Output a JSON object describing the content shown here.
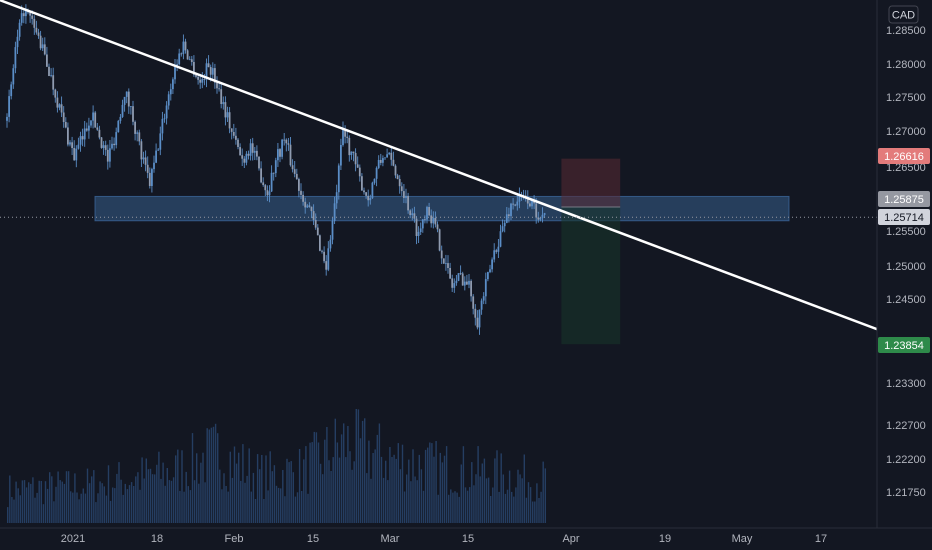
{
  "currency_label": "CAD",
  "colors": {
    "background": "#131722",
    "candle": "#5b8ec7",
    "volume": "#2c4c78",
    "trendline": "#ffffff",
    "zone": "#3e6ea5",
    "stop_zone": "#5a2a33",
    "target_zone": "#17342a",
    "stop_badge": "#e37b7b",
    "target_badge": "#2e8a4a",
    "entry_badge": "#9598a1",
    "last_badge": "#d1d4dc"
  },
  "chart_data": {
    "type": "candlestick",
    "instrument_quote": "CAD",
    "x_tick_labels": [
      "2021",
      "18",
      "Feb",
      "15",
      "Mar",
      "15",
      "Apr",
      "19",
      "May",
      "17"
    ],
    "y_tick_labels": [
      "1.28500",
      "1.28000",
      "1.27500",
      "1.27000",
      "1.26500",
      "1.26000",
      "1.25500",
      "1.25000",
      "1.24500",
      "1.23300",
      "1.22700",
      "1.22200",
      "1.21750"
    ],
    "ylim": [
      1.2145,
      1.2895
    ],
    "price_path_anchors": [
      [
        0,
        1.2715
      ],
      [
        1,
        1.282
      ],
      [
        2,
        1.288
      ],
      [
        3,
        1.286
      ],
      [
        4,
        1.283
      ],
      [
        5,
        1.279
      ],
      [
        6,
        1.2745
      ],
      [
        7,
        1.27
      ],
      [
        8,
        1.2665
      ],
      [
        9,
        1.269
      ],
      [
        10,
        1.2725
      ],
      [
        11,
        1.2695
      ],
      [
        12,
        1.266
      ],
      [
        13,
        1.27
      ],
      [
        14,
        1.276
      ],
      [
        15,
        1.272
      ],
      [
        16,
        1.2665
      ],
      [
        17,
        1.2625
      ],
      [
        18,
        1.268
      ],
      [
        19,
        1.274
      ],
      [
        20,
        1.2795
      ],
      [
        21,
        1.283
      ],
      [
        22,
        1.28
      ],
      [
        23,
        1.277
      ],
      [
        24,
        1.28
      ],
      [
        25,
        1.277
      ],
      [
        26,
        1.273
      ],
      [
        27,
        1.269
      ],
      [
        28,
        1.266
      ],
      [
        29,
        1.268
      ],
      [
        30,
        1.2645
      ],
      [
        31,
        1.261
      ],
      [
        32,
        1.266
      ],
      [
        33,
        1.269
      ],
      [
        34,
        1.265
      ],
      [
        35,
        1.261
      ],
      [
        36,
        1.2585
      ],
      [
        37,
        1.254
      ],
      [
        38,
        1.25
      ],
      [
        39,
        1.2585
      ],
      [
        40,
        1.27
      ],
      [
        41,
        1.267
      ],
      [
        42,
        1.263
      ],
      [
        43,
        1.26
      ],
      [
        44,
        1.2645
      ],
      [
        45,
        1.267
      ],
      [
        46,
        1.265
      ],
      [
        47,
        1.262
      ],
      [
        48,
        1.258
      ],
      [
        49,
        1.2545
      ],
      [
        50,
        1.259
      ],
      [
        51,
        1.2555
      ],
      [
        52,
        1.251
      ],
      [
        53,
        1.247
      ],
      [
        54,
        1.2485
      ],
      [
        55,
        1.247
      ],
      [
        56,
        1.242
      ],
      [
        57,
        1.247
      ],
      [
        58,
        1.252
      ],
      [
        59,
        1.2555
      ],
      [
        60,
        1.259
      ],
      [
        61,
        1.26
      ],
      [
        62,
        1.26
      ],
      [
        63,
        1.258
      ],
      [
        64,
        1.2575
      ]
    ],
    "volume_profile": [
      [
        0,
        0.35
      ],
      [
        10,
        0.4
      ],
      [
        20,
        0.55
      ],
      [
        25,
        0.75
      ],
      [
        30,
        0.5
      ],
      [
        35,
        0.55
      ],
      [
        40,
        0.85
      ],
      [
        45,
        0.7
      ],
      [
        50,
        0.6
      ],
      [
        55,
        0.55
      ],
      [
        60,
        0.5
      ],
      [
        64,
        0.45
      ]
    ],
    "resistance_zone": [
      1.2566,
      1.2604
    ],
    "trendline": {
      "start": [
        -2,
        1.29
      ],
      "end": [
        106,
        1.2396
      ]
    },
    "position": {
      "entry": 1.25875,
      "stop": 1.26616,
      "target": 1.23854,
      "x_range": [
        66,
        73
      ]
    },
    "current_price": 1.25714,
    "price_badges": [
      "1.26616",
      "1.25875",
      "1.25714",
      "1.23854"
    ]
  }
}
